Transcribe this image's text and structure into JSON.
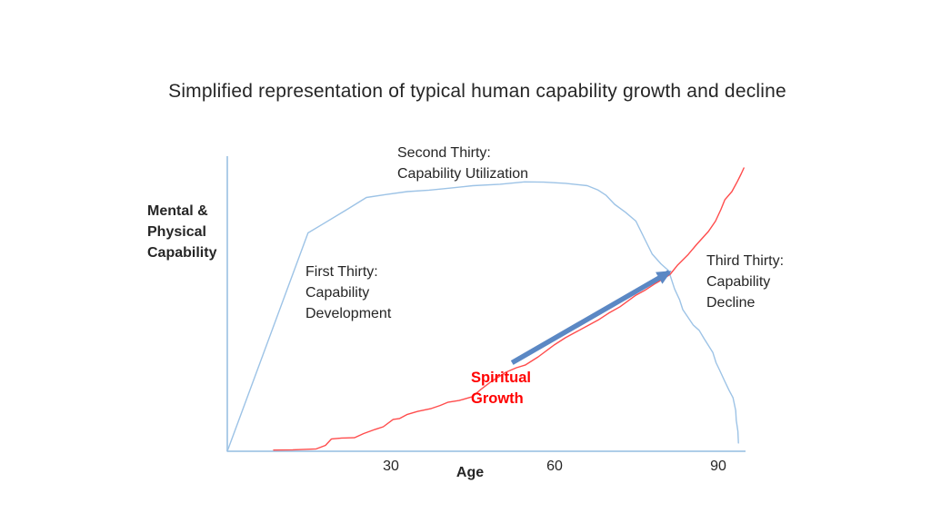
{
  "title": "Simplified representation of typical human capability growth and decline",
  "colors": {
    "text": "#262626",
    "axis": "#aecde8",
    "arrow": "#5b88c4",
    "spiritual_label": "#ff0000"
  },
  "axis_labels": {
    "y": [
      "Mental &",
      "Physical",
      "Capability"
    ],
    "x": "Age"
  },
  "annotations": {
    "second_thirty": [
      "Second Thirty:",
      "Capability Utilization"
    ],
    "first_thirty": [
      "First Thirty:",
      "Capability",
      "Development"
    ],
    "third_thirty": [
      "Third Thirty:",
      "Capability",
      "Decline"
    ],
    "spiritual_growth": [
      "Spiritual",
      "Growth"
    ]
  },
  "chart_data": {
    "type": "line",
    "title": "Simplified representation of typical human capability growth and decline",
    "xlabel": "Age",
    "ylabel": "Mental & Physical Capability",
    "xlim": [
      0,
      95
    ],
    "ylim": [
      0,
      1
    ],
    "x_ticks": [
      30,
      60,
      90
    ],
    "grid": false,
    "legend": "none",
    "series": [
      {
        "name": "Mental & Physical Capability",
        "color": "#9dc3e6",
        "points": [
          [
            0,
            0
          ],
          [
            14.8,
            0.74
          ],
          [
            17.5,
            0.77
          ],
          [
            22,
            0.82
          ],
          [
            25.5,
            0.86
          ],
          [
            29,
            0.87
          ],
          [
            33,
            0.88
          ],
          [
            37,
            0.885
          ],
          [
            41,
            0.892
          ],
          [
            45,
            0.9
          ],
          [
            50,
            0.905
          ],
          [
            54.5,
            0.913
          ],
          [
            58,
            0.912
          ],
          [
            62,
            0.908
          ],
          [
            66,
            0.9
          ],
          [
            68,
            0.885
          ],
          [
            69.4,
            0.868
          ],
          [
            71,
            0.837
          ],
          [
            73,
            0.81
          ],
          [
            74.9,
            0.78
          ],
          [
            76.5,
            0.72
          ],
          [
            77.9,
            0.668
          ],
          [
            79.5,
            0.635
          ],
          [
            80.9,
            0.612
          ],
          [
            82,
            0.55
          ],
          [
            82.9,
            0.514
          ],
          [
            83.5,
            0.48
          ],
          [
            85.4,
            0.428
          ],
          [
            86.5,
            0.41
          ],
          [
            87.4,
            0.382
          ],
          [
            89,
            0.335
          ],
          [
            89.6,
            0.3
          ],
          [
            90.2,
            0.277
          ],
          [
            91.2,
            0.237
          ],
          [
            92,
            0.206
          ],
          [
            92.7,
            0.182
          ],
          [
            93.2,
            0.138
          ],
          [
            93.3,
            0.105
          ],
          [
            93.6,
            0.068
          ],
          [
            93.7,
            0.028
          ]
        ]
      },
      {
        "name": "Spiritual Growth",
        "color": "#ff4c4c",
        "points": [
          [
            8.5,
            0.004
          ],
          [
            12,
            0.005
          ],
          [
            16.3,
            0.008
          ],
          [
            18,
            0.02
          ],
          [
            19.1,
            0.042
          ],
          [
            21,
            0.045
          ],
          [
            23.3,
            0.046
          ],
          [
            25,
            0.06
          ],
          [
            27.1,
            0.074
          ],
          [
            28.6,
            0.083
          ],
          [
            30.4,
            0.108
          ],
          [
            31.6,
            0.111
          ],
          [
            33,
            0.125
          ],
          [
            34.9,
            0.135
          ],
          [
            37.4,
            0.145
          ],
          [
            39,
            0.155
          ],
          [
            40.4,
            0.166
          ],
          [
            42.5,
            0.172
          ],
          [
            44.9,
            0.185
          ],
          [
            46.5,
            0.21
          ],
          [
            48.3,
            0.235
          ],
          [
            51.1,
            0.268
          ],
          [
            53,
            0.283
          ],
          [
            54.6,
            0.292
          ],
          [
            57,
            0.32
          ],
          [
            59.9,
            0.36
          ],
          [
            62,
            0.385
          ],
          [
            64,
            0.405
          ],
          [
            65.7,
            0.422
          ],
          [
            68,
            0.445
          ],
          [
            69.9,
            0.468
          ],
          [
            72,
            0.49
          ],
          [
            74.9,
            0.529
          ],
          [
            76.5,
            0.545
          ],
          [
            78.5,
            0.569
          ],
          [
            80,
            0.585
          ],
          [
            81.2,
            0.6
          ],
          [
            82.5,
            0.63
          ],
          [
            84.5,
            0.667
          ],
          [
            86,
            0.7
          ],
          [
            88.2,
            0.745
          ],
          [
            89.5,
            0.78
          ],
          [
            90.5,
            0.82
          ],
          [
            91.2,
            0.852
          ],
          [
            92.5,
            0.88
          ],
          [
            93.5,
            0.914
          ],
          [
            94.2,
            0.94
          ],
          [
            94.7,
            0.96
          ]
        ]
      }
    ],
    "arrow": {
      "name": "Spiritual Growth emphasis arrow",
      "color": "#5b88c4",
      "from": [
        52.2,
        0.3
      ],
      "to": [
        81,
        0.607
      ]
    }
  }
}
